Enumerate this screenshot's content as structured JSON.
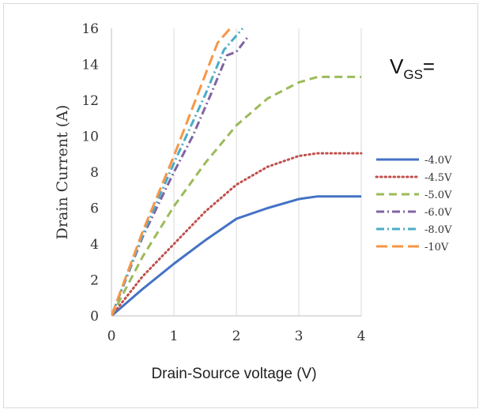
{
  "chart_data": {
    "type": "line",
    "title": "",
    "xlabel": "Drain-Source voltage (V)",
    "ylabel": "Drain Current (A)",
    "xlim": [
      0,
      4
    ],
    "ylim": [
      0,
      16
    ],
    "xticks": [
      "0",
      "1",
      "2",
      "3",
      "4"
    ],
    "yticks": [
      "0",
      "2",
      "4",
      "6",
      "8",
      "10",
      "12",
      "14",
      "16"
    ],
    "grid": "vertical",
    "legend_title_main": "V",
    "legend_title_sub": "GS",
    "legend_title_suffix": "=",
    "legend_position": "right",
    "series": [
      {
        "name": "-4.0V",
        "color": "#4472c4",
        "dash": "solid",
        "points": [
          [
            0,
            0
          ],
          [
            0.5,
            1.5
          ],
          [
            1,
            2.9
          ],
          [
            1.5,
            4.2
          ],
          [
            2,
            5.4
          ],
          [
            2.5,
            6.0
          ],
          [
            3,
            6.5
          ],
          [
            3.3,
            6.65
          ],
          [
            3.6,
            6.65
          ],
          [
            4,
            6.65
          ]
        ]
      },
      {
        "name": "-4.5V",
        "color": "#c0504d",
        "dash": "dotted",
        "points": [
          [
            0,
            0
          ],
          [
            0.5,
            2.2
          ],
          [
            1,
            4.0
          ],
          [
            1.5,
            5.8
          ],
          [
            2,
            7.3
          ],
          [
            2.5,
            8.3
          ],
          [
            3,
            8.9
          ],
          [
            3.3,
            9.05
          ],
          [
            3.6,
            9.05
          ],
          [
            4,
            9.05
          ]
        ]
      },
      {
        "name": "-5.0V",
        "color": "#9bbb59",
        "dash": "dashed",
        "points": [
          [
            0,
            0
          ],
          [
            0.5,
            3.3
          ],
          [
            1,
            6.1
          ],
          [
            1.5,
            8.5
          ],
          [
            2,
            10.6
          ],
          [
            2.5,
            12.1
          ],
          [
            3,
            13.0
          ],
          [
            3.3,
            13.3
          ],
          [
            3.6,
            13.3
          ],
          [
            4,
            13.3
          ]
        ]
      },
      {
        "name": "-6.0V",
        "color": "#8064a2",
        "dash": "dashdot",
        "points": [
          [
            0,
            0
          ],
          [
            0.5,
            4.4
          ],
          [
            1,
            8.0
          ],
          [
            1.3,
            10.0
          ],
          [
            1.6,
            12.4
          ],
          [
            1.85,
            14.5
          ],
          [
            2,
            14.7
          ],
          [
            2.2,
            15.6
          ]
        ]
      },
      {
        "name": "-8.0V",
        "color": "#4bacc6",
        "dash": "dashdot",
        "points": [
          [
            0,
            0
          ],
          [
            0.5,
            4.5
          ],
          [
            1,
            8.5
          ],
          [
            1.5,
            12.3
          ],
          [
            1.8,
            14.8
          ],
          [
            2.1,
            16.0
          ]
        ]
      },
      {
        "name": "-10V",
        "color": "#f79646",
        "dash": "longdash",
        "points": [
          [
            0,
            0
          ],
          [
            0.5,
            4.7
          ],
          [
            1,
            8.9
          ],
          [
            1.4,
            12.5
          ],
          [
            1.7,
            15.2
          ],
          [
            1.9,
            16.0
          ]
        ]
      }
    ]
  }
}
